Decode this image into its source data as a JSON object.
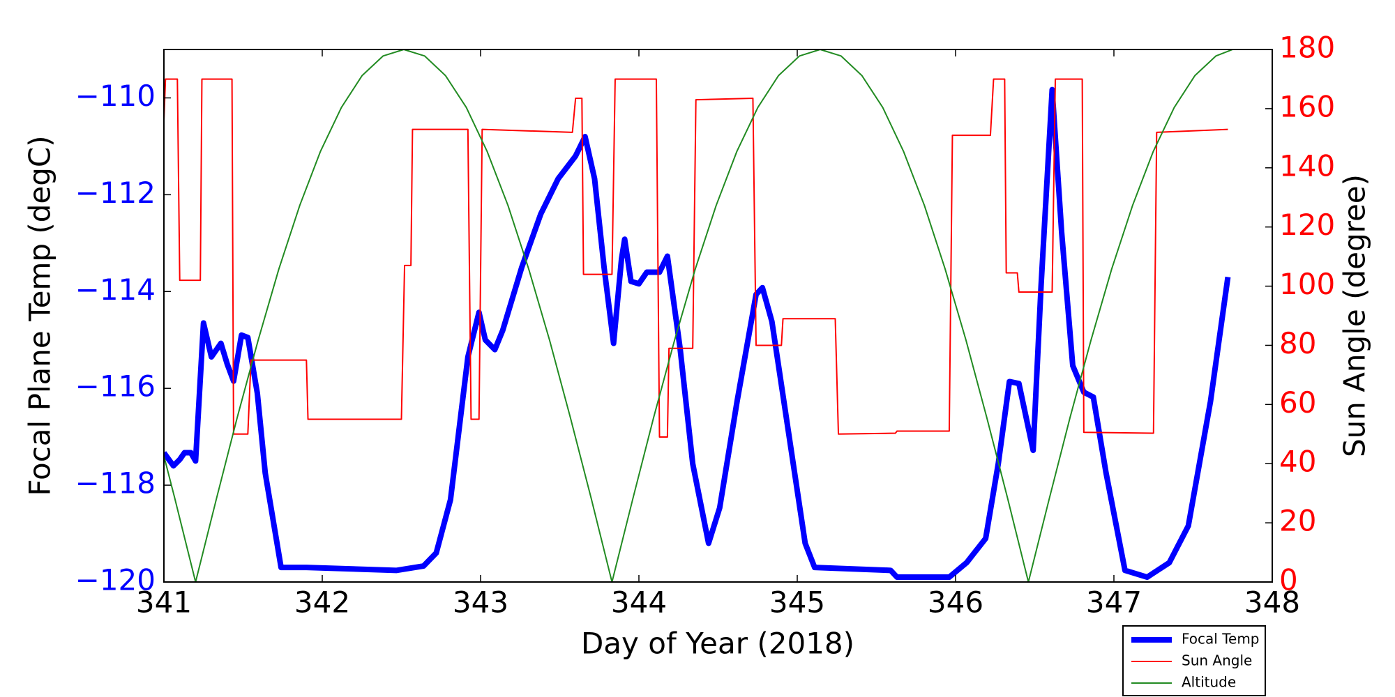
{
  "chart_data": {
    "type": "line",
    "xlabel": "Day of Year (2018)",
    "ylabel": "Focal Plane Temp (degC)",
    "y2label": "Sun Angle (degree)",
    "xlim": [
      341,
      348
    ],
    "xticks": [
      341,
      342,
      343,
      344,
      345,
      346,
      347,
      348
    ],
    "ylim": [
      -120,
      -109
    ],
    "yticks": [
      {
        "value": -120,
        "label": "−120"
      },
      {
        "value": -118,
        "label": "−118"
      },
      {
        "value": -116,
        "label": "−116"
      },
      {
        "value": -114,
        "label": "−114"
      },
      {
        "value": -112,
        "label": "−112"
      },
      {
        "value": -110,
        "label": "−110"
      }
    ],
    "y_tick_color": "#0000ff",
    "y2lim": [
      0,
      180
    ],
    "y2ticks": [
      0,
      20,
      40,
      60,
      80,
      100,
      120,
      140,
      160,
      180
    ],
    "y2_tick_color": "#ff0000",
    "grid": false,
    "series": [
      {
        "name": "Focal Temp",
        "color": "#0000ff",
        "axis": "y",
        "x": [
          341.0,
          341.06,
          341.1,
          341.13,
          341.17,
          341.2,
          341.25,
          341.3,
          341.36,
          341.4,
          341.44,
          341.49,
          341.53,
          341.59,
          341.64,
          341.74,
          341.9,
          342.47,
          342.64,
          342.72,
          342.81,
          342.92,
          342.99,
          343.03,
          343.09,
          343.14,
          343.26,
          343.38,
          343.49,
          343.6,
          343.66,
          343.72,
          343.78,
          343.84,
          343.89,
          343.91,
          343.95,
          344.0,
          344.05,
          344.13,
          344.18,
          344.26,
          344.34,
          344.44,
          344.51,
          344.62,
          344.74,
          344.78,
          344.84,
          344.94,
          345.05,
          345.11,
          345.59,
          345.63,
          345.96,
          346.07,
          346.19,
          346.27,
          346.34,
          346.4,
          346.49,
          346.54,
          346.61,
          346.67,
          346.74,
          346.81,
          346.87,
          346.95,
          347.07,
          347.21,
          347.35,
          347.47,
          347.61,
          347.72
        ],
        "values": [
          -117.33,
          -117.6,
          -117.47,
          -117.33,
          -117.33,
          -117.5,
          -114.65,
          -115.35,
          -115.07,
          -115.5,
          -115.85,
          -114.9,
          -114.95,
          -116.1,
          -117.75,
          -119.7,
          -119.7,
          -119.76,
          -119.67,
          -119.4,
          -118.3,
          -115.35,
          -114.43,
          -115.0,
          -115.2,
          -114.8,
          -113.5,
          -112.4,
          -111.67,
          -111.2,
          -110.8,
          -111.67,
          -113.5,
          -115.07,
          -113.33,
          -112.92,
          -113.79,
          -113.84,
          -113.6,
          -113.6,
          -113.27,
          -115.17,
          -117.56,
          -119.2,
          -118.47,
          -116.27,
          -114.06,
          -113.92,
          -114.62,
          -116.8,
          -119.2,
          -119.7,
          -119.76,
          -119.9,
          -119.9,
          -119.6,
          -119.1,
          -117.55,
          -115.86,
          -115.9,
          -117.28,
          -113.88,
          -109.83,
          -112.78,
          -115.53,
          -116.08,
          -116.18,
          -117.74,
          -119.76,
          -119.9,
          -119.6,
          -118.84,
          -116.27,
          -113.7
        ]
      },
      {
        "name": "Sun Angle",
        "color": "#ff0000",
        "axis": "y2",
        "x": [
          341.0,
          341.01,
          341.085,
          341.1,
          341.23,
          341.24,
          341.36,
          341.43,
          341.44,
          341.53,
          341.55,
          341.9,
          341.91,
          342.5,
          342.52,
          342.56,
          342.57,
          342.92,
          342.94,
          342.99,
          343.01,
          343.58,
          343.6,
          343.64,
          343.65,
          343.83,
          343.85,
          344.11,
          344.13,
          344.18,
          344.19,
          344.34,
          344.36,
          344.72,
          344.74,
          344.9,
          344.91,
          345.24,
          345.26,
          345.62,
          345.63,
          345.96,
          345.98,
          346.22,
          346.24,
          346.31,
          346.32,
          346.39,
          346.4,
          346.61,
          346.63,
          346.8,
          346.81,
          347.25,
          347.27,
          347.72
        ],
        "values": [
          156,
          170,
          170,
          102,
          102,
          170,
          170,
          170,
          50,
          50,
          75,
          75,
          55,
          55,
          107,
          107,
          153,
          153,
          55,
          55,
          153,
          152,
          163.5,
          163.5,
          104,
          104,
          170,
          170,
          49,
          49,
          79,
          79,
          163,
          163.5,
          80,
          80,
          89,
          89,
          50,
          50.3,
          51,
          51,
          151,
          151,
          170,
          170,
          104.5,
          104.5,
          98,
          98,
          170,
          170,
          50.6,
          50.3,
          152,
          153
        ]
      },
      {
        "name": "Altitude",
        "color": "#228b22",
        "axis": "y2",
        "x": [
          341.0,
          341.069,
          341.2,
          341.332,
          341.463,
          341.595,
          341.726,
          341.858,
          341.989,
          342.121,
          342.252,
          342.384,
          342.515,
          342.647,
          342.778,
          342.91,
          343.041,
          343.173,
          343.304,
          343.436,
          343.567,
          343.699,
          343.83,
          343.962,
          344.093,
          344.225,
          344.356,
          344.488,
          344.619,
          344.751,
          344.882,
          345.014,
          345.145,
          345.277,
          345.408,
          345.54,
          345.671,
          345.803,
          345.934,
          346.066,
          346.197,
          346.329,
          346.46,
          346.592,
          346.723,
          346.855,
          346.986,
          347.118,
          347.249,
          347.381,
          347.512,
          347.644,
          347.75
        ],
        "values": [
          42.6,
          28.2,
          0,
          28.2,
          55.6,
          81.7,
          105.8,
          127.3,
          145.6,
          160.4,
          171.2,
          177.8,
          180,
          177.8,
          171.2,
          160.4,
          145.6,
          127.3,
          105.8,
          81.7,
          55.6,
          28.2,
          0,
          28.2,
          55.6,
          81.7,
          105.8,
          127.3,
          145.6,
          160.4,
          171.2,
          177.8,
          180,
          177.8,
          171.2,
          160.4,
          145.6,
          127.3,
          105.8,
          81.7,
          55.6,
          28.2,
          0,
          28.2,
          55.6,
          81.7,
          105.8,
          127.3,
          145.6,
          160.4,
          171.2,
          177.8,
          180
        ]
      }
    ]
  }
}
